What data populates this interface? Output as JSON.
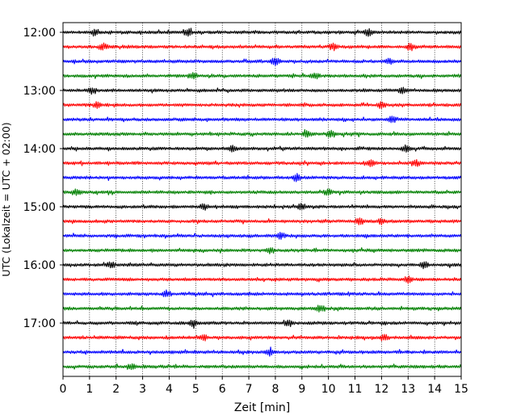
{
  "chart_data": {
    "type": "line",
    "title": "",
    "xlabel": "Zeit  [min]",
    "ylabel": "UTC (Lokalzeit = UTC + 02:00)",
    "xlim": [
      0,
      15
    ],
    "x_ticks": [
      "0",
      "1",
      "2",
      "3",
      "4",
      "5",
      "6",
      "7",
      "8",
      "9",
      "10",
      "11",
      "12",
      "13",
      "14",
      "15"
    ],
    "y_tick_labels": [
      "12:00",
      "13:00",
      "14:00",
      "15:00",
      "16:00",
      "17:00"
    ],
    "grid": "vertical dotted lines at each minute",
    "trace_interval_minutes": 15,
    "trace_colors": [
      "#000000",
      "#ff0000",
      "#0000ff",
      "#008000"
    ],
    "series": [
      {
        "start": "12:00",
        "color": "#000000",
        "bursts": [
          1.2,
          4.7,
          11.5
        ]
      },
      {
        "start": "12:15",
        "color": "#ff0000",
        "bursts": [
          1.5,
          10.2,
          13.1
        ]
      },
      {
        "start": "12:30",
        "color": "#0000ff",
        "bursts": [
          8.0,
          12.3
        ]
      },
      {
        "start": "12:45",
        "color": "#008000",
        "bursts": [
          4.9,
          9.5
        ]
      },
      {
        "start": "13:00",
        "color": "#000000",
        "bursts": [
          1.1,
          12.8
        ]
      },
      {
        "start": "13:15",
        "color": "#ff0000",
        "bursts": [
          1.3,
          12.0
        ]
      },
      {
        "start": "13:30",
        "color": "#0000ff",
        "bursts": [
          12.4
        ]
      },
      {
        "start": "13:45",
        "color": "#008000",
        "bursts": [
          9.2,
          10.1
        ]
      },
      {
        "start": "14:00",
        "color": "#000000",
        "bursts": [
          6.4,
          12.9
        ]
      },
      {
        "start": "14:15",
        "color": "#ff0000",
        "bursts": [
          11.6,
          13.3
        ]
      },
      {
        "start": "14:30",
        "color": "#0000ff",
        "bursts": [
          8.8
        ]
      },
      {
        "start": "14:45",
        "color": "#008000",
        "bursts": [
          0.5,
          10.0
        ]
      },
      {
        "start": "15:00",
        "color": "#000000",
        "bursts": [
          5.3,
          9.0
        ]
      },
      {
        "start": "15:15",
        "color": "#ff0000",
        "bursts": [
          11.2,
          12.0
        ]
      },
      {
        "start": "15:30",
        "color": "#0000ff",
        "bursts": [
          8.2
        ]
      },
      {
        "start": "15:45",
        "color": "#008000",
        "bursts": [
          7.8
        ]
      },
      {
        "start": "16:00",
        "color": "#000000",
        "bursts": [
          1.8,
          13.6
        ]
      },
      {
        "start": "16:15",
        "color": "#ff0000",
        "bursts": [
          13.0
        ]
      },
      {
        "start": "16:30",
        "color": "#0000ff",
        "bursts": [
          3.9
        ]
      },
      {
        "start": "16:45",
        "color": "#008000",
        "bursts": [
          9.7
        ]
      },
      {
        "start": "17:00",
        "color": "#000000",
        "bursts": [
          4.9,
          8.5
        ]
      },
      {
        "start": "17:15",
        "color": "#ff0000",
        "bursts": [
          5.3,
          12.1
        ]
      },
      {
        "start": "17:30",
        "color": "#0000ff",
        "bursts": [
          7.8
        ]
      },
      {
        "start": "17:45",
        "color": "#008000",
        "bursts": [
          2.6
        ]
      }
    ]
  }
}
